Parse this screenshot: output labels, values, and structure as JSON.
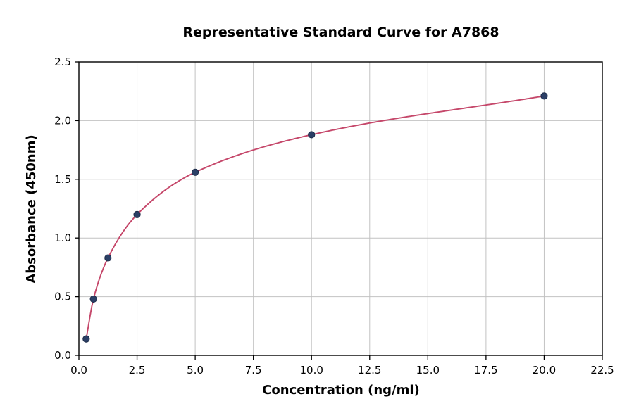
{
  "figure": {
    "background": "#ffffff"
  },
  "chart_data": {
    "type": "line",
    "title": "Representative Standard Curve for A7868",
    "xlabel": "Concentration (ng/ml)",
    "ylabel": "Absorbance (450nm)",
    "x": [
      0.313,
      0.625,
      1.25,
      2.5,
      5.0,
      10.0,
      20.0
    ],
    "y": [
      0.14,
      0.48,
      0.83,
      1.2,
      1.56,
      1.88,
      2.21
    ],
    "xlim": [
      0,
      22.5
    ],
    "ylim": [
      0,
      2.5
    ],
    "xticks": [
      0.0,
      2.5,
      5.0,
      7.5,
      10.0,
      12.5,
      15.0,
      17.5,
      20.0,
      22.5
    ],
    "yticks": [
      0.0,
      0.5,
      1.0,
      1.5,
      2.0,
      2.5
    ],
    "xtick_labels": [
      "0.0",
      "2.5",
      "5.0",
      "7.5",
      "10.0",
      "12.5",
      "15.0",
      "17.5",
      "20.0",
      "22.5"
    ],
    "ytick_labels": [
      "0.0",
      "0.5",
      "1.0",
      "1.5",
      "2.0",
      "2.5"
    ],
    "grid": true,
    "legend": "none",
    "line_color": "#c5476a",
    "marker_color": "#2b3f66",
    "marker_edge_color": "#1d2c49",
    "grid_color": "#c2c2c2",
    "spine_color": "#000000"
  }
}
